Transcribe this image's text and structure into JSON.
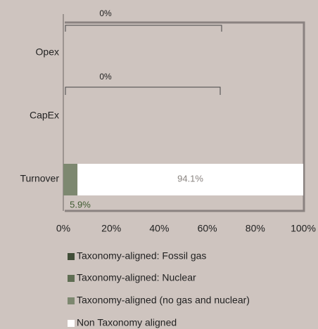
{
  "chart_data": {
    "type": "bar",
    "orientation": "horizontal",
    "stacked": true,
    "categories": [
      "Opex",
      "CapEx",
      "Turnover"
    ],
    "series": [
      {
        "name": "Taxonomy-aligned: Fossil gas",
        "color": "#414e38",
        "values": [
          null,
          null,
          null
        ]
      },
      {
        "name": "Taxonomy-aligned: Nuclear",
        "color": "#5f6d53",
        "values": [
          null,
          null,
          null
        ]
      },
      {
        "name": "Taxonomy-aligned (no gas and nuclear)",
        "color": "#7d8870",
        "values": [
          null,
          null,
          5.9
        ],
        "value_labels": [
          null,
          null,
          "5.9%"
        ]
      },
      {
        "name": "Non Taxonomy aligned",
        "color": "#ffffff",
        "values": [
          null,
          null,
          94.1
        ],
        "value_labels": [
          null,
          null,
          "94.1%"
        ]
      }
    ],
    "annotations": [
      "0%",
      "0%"
    ],
    "xlim": [
      0,
      100
    ],
    "xticks": [
      {
        "value": 0,
        "label": "0%"
      },
      {
        "value": 20,
        "label": "20%"
      },
      {
        "value": 40,
        "label": "40%"
      },
      {
        "value": 60,
        "label": "60%"
      },
      {
        "value": 80,
        "label": "80%"
      },
      {
        "value": 100,
        "label": "100%"
      }
    ]
  }
}
